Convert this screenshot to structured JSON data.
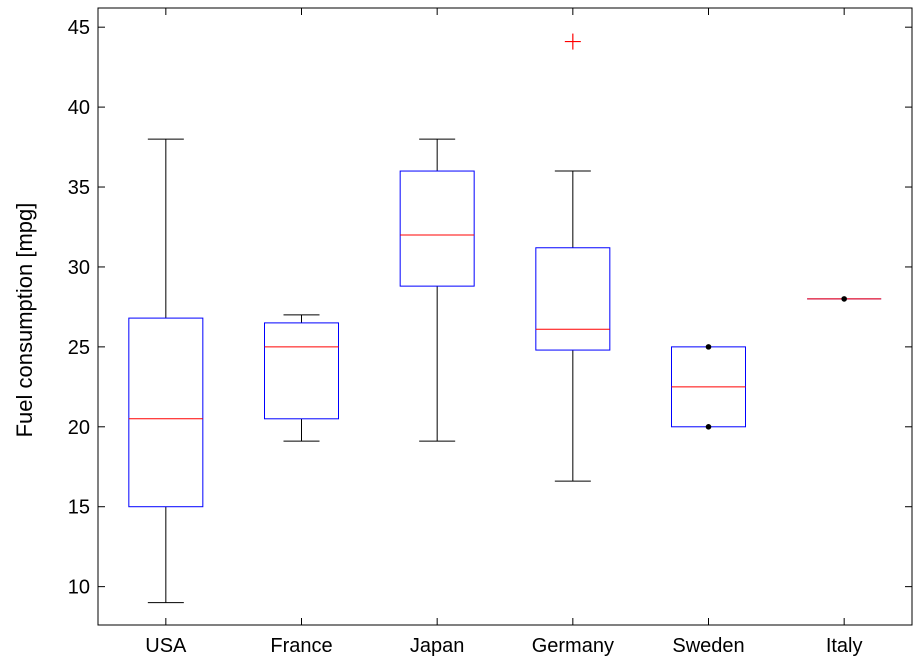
{
  "chart_data": {
    "type": "box",
    "ylabel": "Fuel consumption  [mpg]",
    "xlabel": "",
    "title": "",
    "ylim": [
      7.6,
      46.2
    ],
    "yticks": [
      10,
      15,
      20,
      25,
      30,
      35,
      40,
      45
    ],
    "ytick_labels": [
      "10",
      "15",
      "20",
      "25",
      "30",
      "35",
      "40",
      "45"
    ],
    "categories": [
      "USA",
      "France",
      "Japan",
      "Germany",
      "Sweden",
      "Italy"
    ],
    "boxes": [
      {
        "category": "USA",
        "whisker_low": 9,
        "q1": 15,
        "median": 20.5,
        "q3": 26.8,
        "whisker_high": 38,
        "outliers": []
      },
      {
        "category": "France",
        "whisker_low": 19.1,
        "q1": 20.5,
        "median": 25,
        "q3": 26.5,
        "whisker_high": 27,
        "outliers": []
      },
      {
        "category": "Japan",
        "whisker_low": 19.1,
        "q1": 28.8,
        "median": 32,
        "q3": 36,
        "whisker_high": 38,
        "outliers": []
      },
      {
        "category": "Germany",
        "whisker_low": 16.6,
        "q1": 24.8,
        "median": 26.1,
        "q3": 31.2,
        "whisker_high": 36,
        "outliers": [
          44.1
        ]
      },
      {
        "category": "Sweden",
        "whisker_low": 20,
        "q1": 20,
        "median": 22.5,
        "q3": 25,
        "whisker_high": 25,
        "points": [
          20,
          25
        ],
        "outliers": []
      },
      {
        "category": "Italy",
        "whisker_low": 28,
        "q1": 28,
        "median": 28,
        "q3": 28,
        "whisker_high": 28,
        "points": [
          28
        ],
        "outliers": []
      }
    ],
    "colors": {
      "box": "#0000ff",
      "median": "#ff0000",
      "whisker": "#000000",
      "outlier": "#ff0000",
      "point": "#000000"
    },
    "grid": false,
    "legend": "none"
  }
}
